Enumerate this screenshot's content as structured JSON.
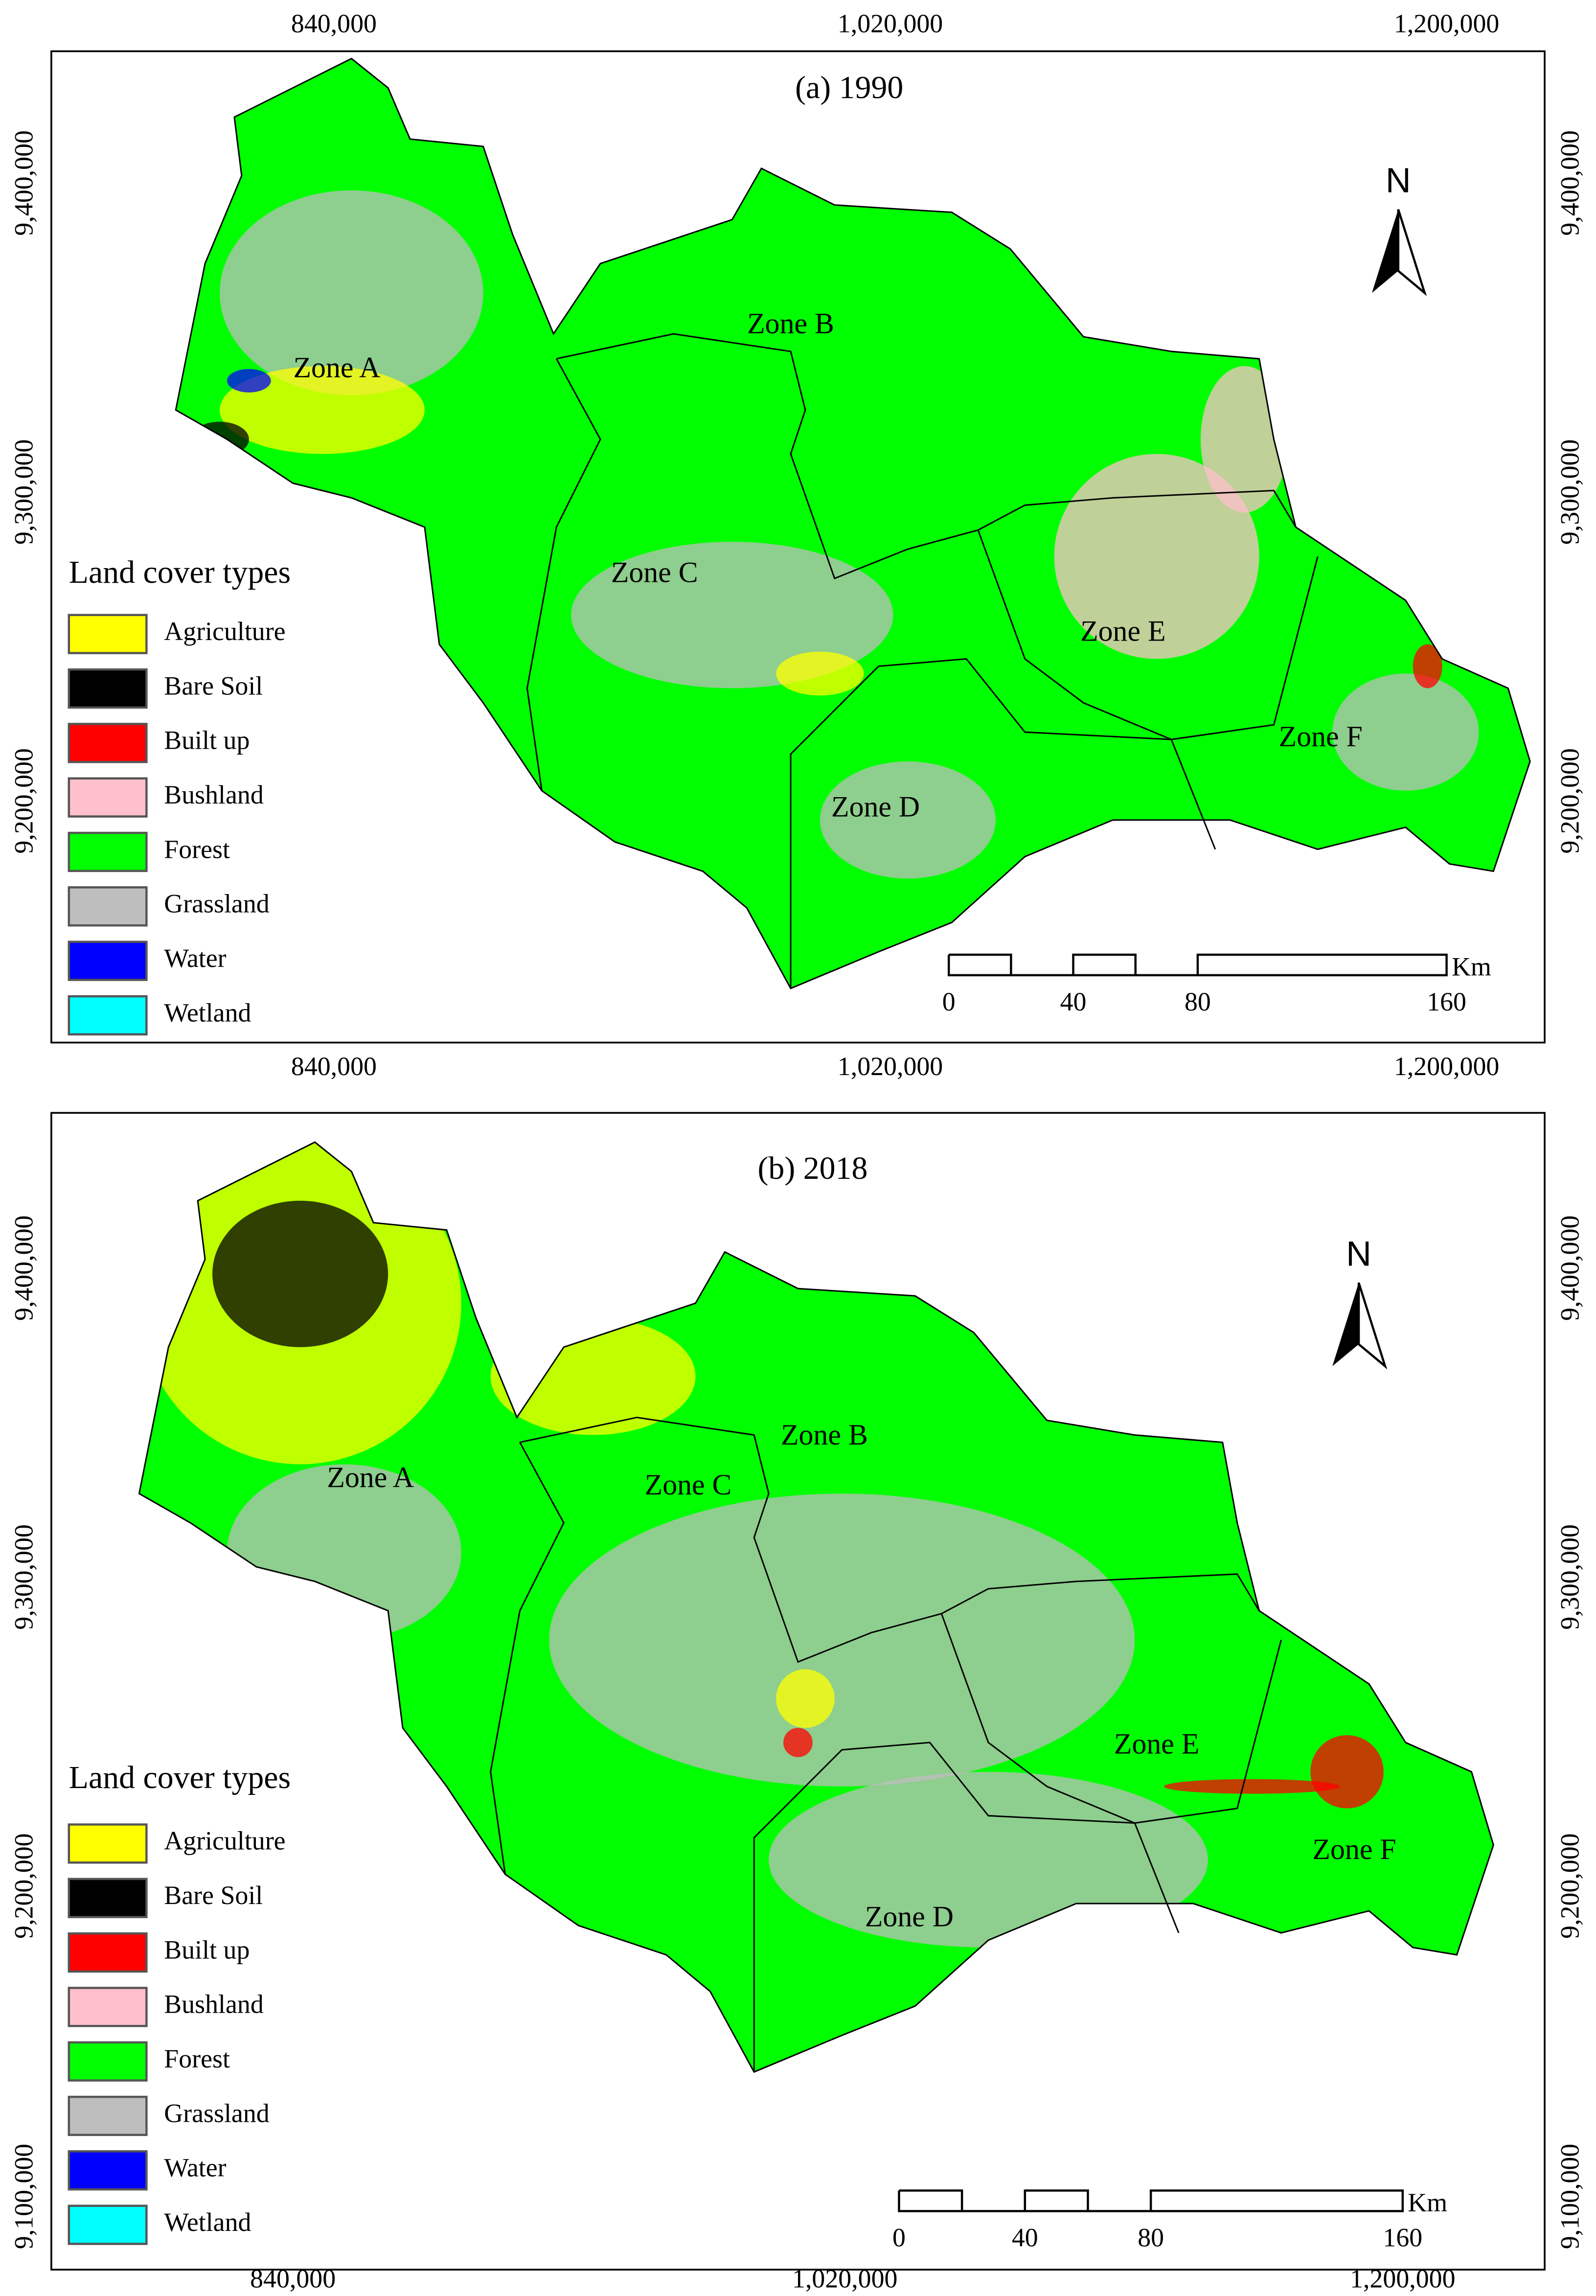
{
  "panels": [
    {
      "title": "(a) 1990",
      "x_ticks_top": [
        "840,000",
        "1,020,000",
        "1,200,000"
      ],
      "x_ticks_bottom": [
        "840,000",
        "1,020,000",
        "1,200,000"
      ],
      "y_ticks": [
        "9,400,000",
        "9,300,000",
        "9,200,000"
      ],
      "zones": [
        "Zone A",
        "Zone B",
        "Zone C",
        "Zone D",
        "Zone E",
        "Zone F"
      ],
      "north": "N",
      "scale": {
        "labels": [
          "0",
          "40",
          "80",
          "160"
        ],
        "unit": "Km"
      },
      "legend": {
        "title": "Land cover types",
        "items": [
          {
            "label": "Agriculture",
            "color": "#ffff00"
          },
          {
            "label": "Bare Soil",
            "color": "#000000"
          },
          {
            "label": "Built up",
            "color": "#ff0000"
          },
          {
            "label": "Bushland",
            "color": "#ffc0cb"
          },
          {
            "label": "Forest",
            "color": "#00ff00"
          },
          {
            "label": "Grassland",
            "color": "#bebebe"
          },
          {
            "label": "Water",
            "color": "#0000ff"
          },
          {
            "label": "Wetland",
            "color": "#00ffff"
          }
        ]
      }
    },
    {
      "title": "(b) 2018",
      "x_ticks_bottom": [
        "840,000",
        "1,020,000",
        "1,200,000"
      ],
      "y_ticks": [
        "9,400,000",
        "9,300,000",
        "9,200,000",
        "9,100,000"
      ],
      "zones": [
        "Zone A",
        "Zone B",
        "Zone C",
        "Zone D",
        "Zone E",
        "Zone F"
      ],
      "north": "N",
      "scale": {
        "labels": [
          "0",
          "40",
          "80",
          "160"
        ],
        "unit": "Km"
      },
      "legend": {
        "title": "Land cover types",
        "items": [
          {
            "label": "Agriculture",
            "color": "#ffff00"
          },
          {
            "label": "Bare Soil",
            "color": "#000000"
          },
          {
            "label": "Built up",
            "color": "#ff0000"
          },
          {
            "label": "Bushland",
            "color": "#ffc0cb"
          },
          {
            "label": "Forest",
            "color": "#00ff00"
          },
          {
            "label": "Grassland",
            "color": "#bebebe"
          },
          {
            "label": "Water",
            "color": "#0000ff"
          },
          {
            "label": "Wetland",
            "color": "#00ffff"
          }
        ]
      }
    }
  ]
}
